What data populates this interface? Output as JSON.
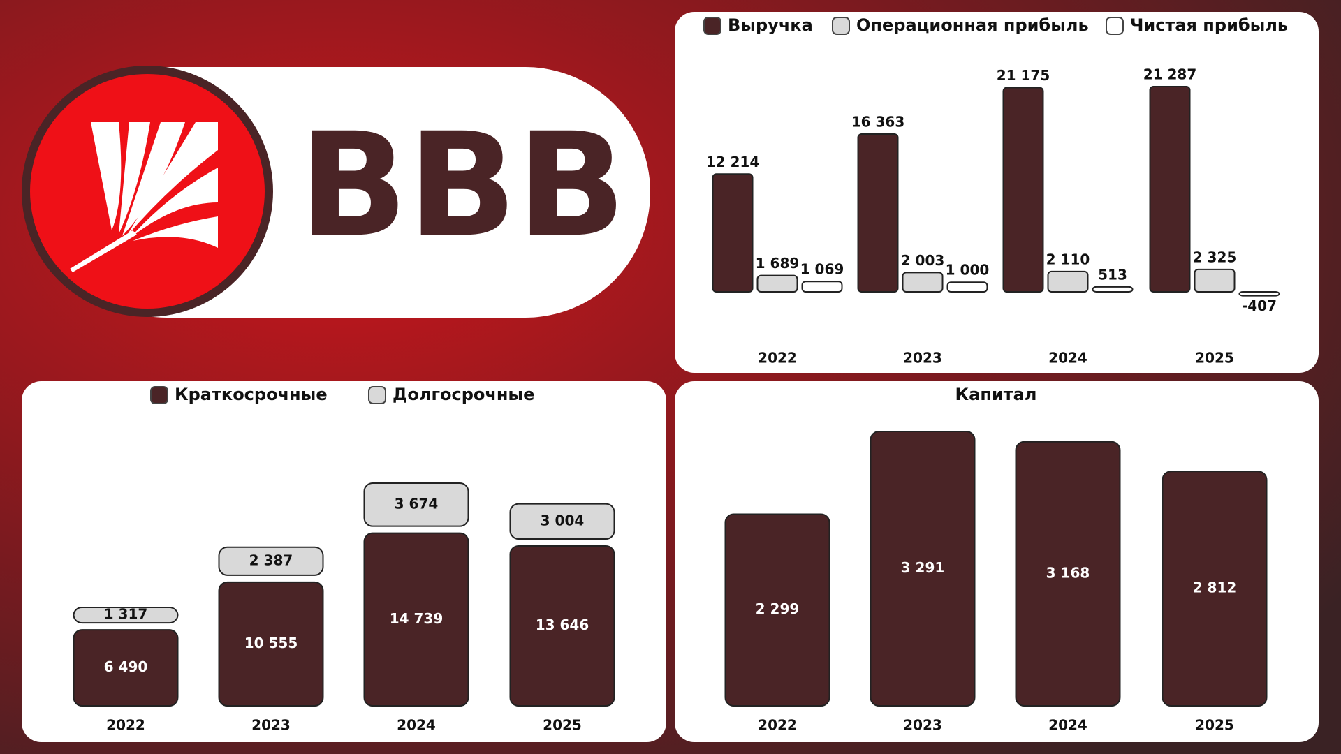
{
  "logo": {
    "text": "BBB"
  },
  "chart_data": [
    {
      "type": "grouped-bar",
      "categories": [
        "2022",
        "2023",
        "2024",
        "2025"
      ],
      "series": [
        {
          "name": "Выручка",
          "color": "#4a2426",
          "values": [
            12214,
            16363,
            21175,
            21287
          ],
          "value_labels": [
            "12 214",
            "16 363",
            "21 175",
            "21 287"
          ]
        },
        {
          "name": "Операционная прибыль",
          "color": "#d9d9d9",
          "values": [
            1689,
            2003,
            2110,
            2325
          ],
          "value_labels": [
            "1 689",
            "2 003",
            "2 110",
            "2 325"
          ]
        },
        {
          "name": "Чистая прибыль",
          "color": "#ffffff",
          "values": [
            1069,
            1000,
            513,
            -407
          ],
          "value_labels": [
            "1 069",
            "1 000",
            "513",
            "-407"
          ]
        }
      ]
    },
    {
      "type": "stacked-bar",
      "categories": [
        "2022",
        "2023",
        "2024",
        "2025"
      ],
      "series": [
        {
          "name": "Краткосрочные",
          "color": "#4a2426",
          "values": [
            6490,
            10555,
            14739,
            13646
          ],
          "value_labels": [
            "6 490",
            "10 555",
            "14 739",
            "13 646"
          ]
        },
        {
          "name": "Долгосрочные",
          "color": "#d9d9d9",
          "values": [
            1317,
            2387,
            3674,
            3004
          ],
          "value_labels": [
            "1 317",
            "2 387",
            "3 674",
            "3 004"
          ]
        }
      ]
    },
    {
      "type": "bar",
      "title": "Капитал",
      "categories": [
        "2022",
        "2023",
        "2024",
        "2025"
      ],
      "color": "#4a2426",
      "values": [
        2299,
        3291,
        3168,
        2812
      ],
      "value_labels": [
        "2 299",
        "3 291",
        "3 168",
        "2 812"
      ]
    }
  ]
}
